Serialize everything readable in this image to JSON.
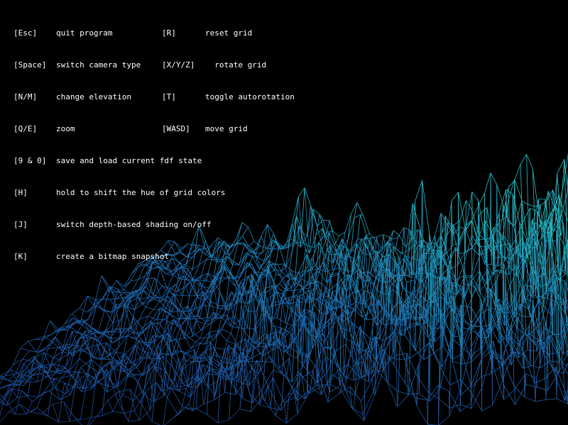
{
  "window": {
    "background": "#000000",
    "text_color": "#ffffff"
  },
  "controls": {
    "rows": [
      {
        "key": "[Esc]",
        "desc": "quit program",
        "key2": "[R]",
        "desc2": "reset grid"
      },
      {
        "key": "[Space]",
        "desc": "switch camera type",
        "key2": "[X/Y/Z]",
        "desc2": "  rotate grid"
      },
      {
        "key": "[N/M]",
        "desc": "change elevation",
        "key2": "[T]",
        "desc2": "toggle autorotation"
      },
      {
        "key": "[Q/E]",
        "desc": "zoom",
        "key2": "[WASD]",
        "desc2": "move grid"
      },
      {
        "key": "[9 & 0]",
        "desc": "save and load current fdf state"
      },
      {
        "key": "[H]",
        "desc": "hold to shift the hue of grid colors"
      },
      {
        "key": "[J]",
        "desc": "switch depth-based shading on/off"
      },
      {
        "key": "[K]",
        "desc": "create a bitmap snapshot"
      }
    ]
  },
  "terrain": {
    "colors": {
      "near": "#1d3f8c",
      "mid": "#1e6ab0",
      "far": "#27bfc4"
    }
  }
}
